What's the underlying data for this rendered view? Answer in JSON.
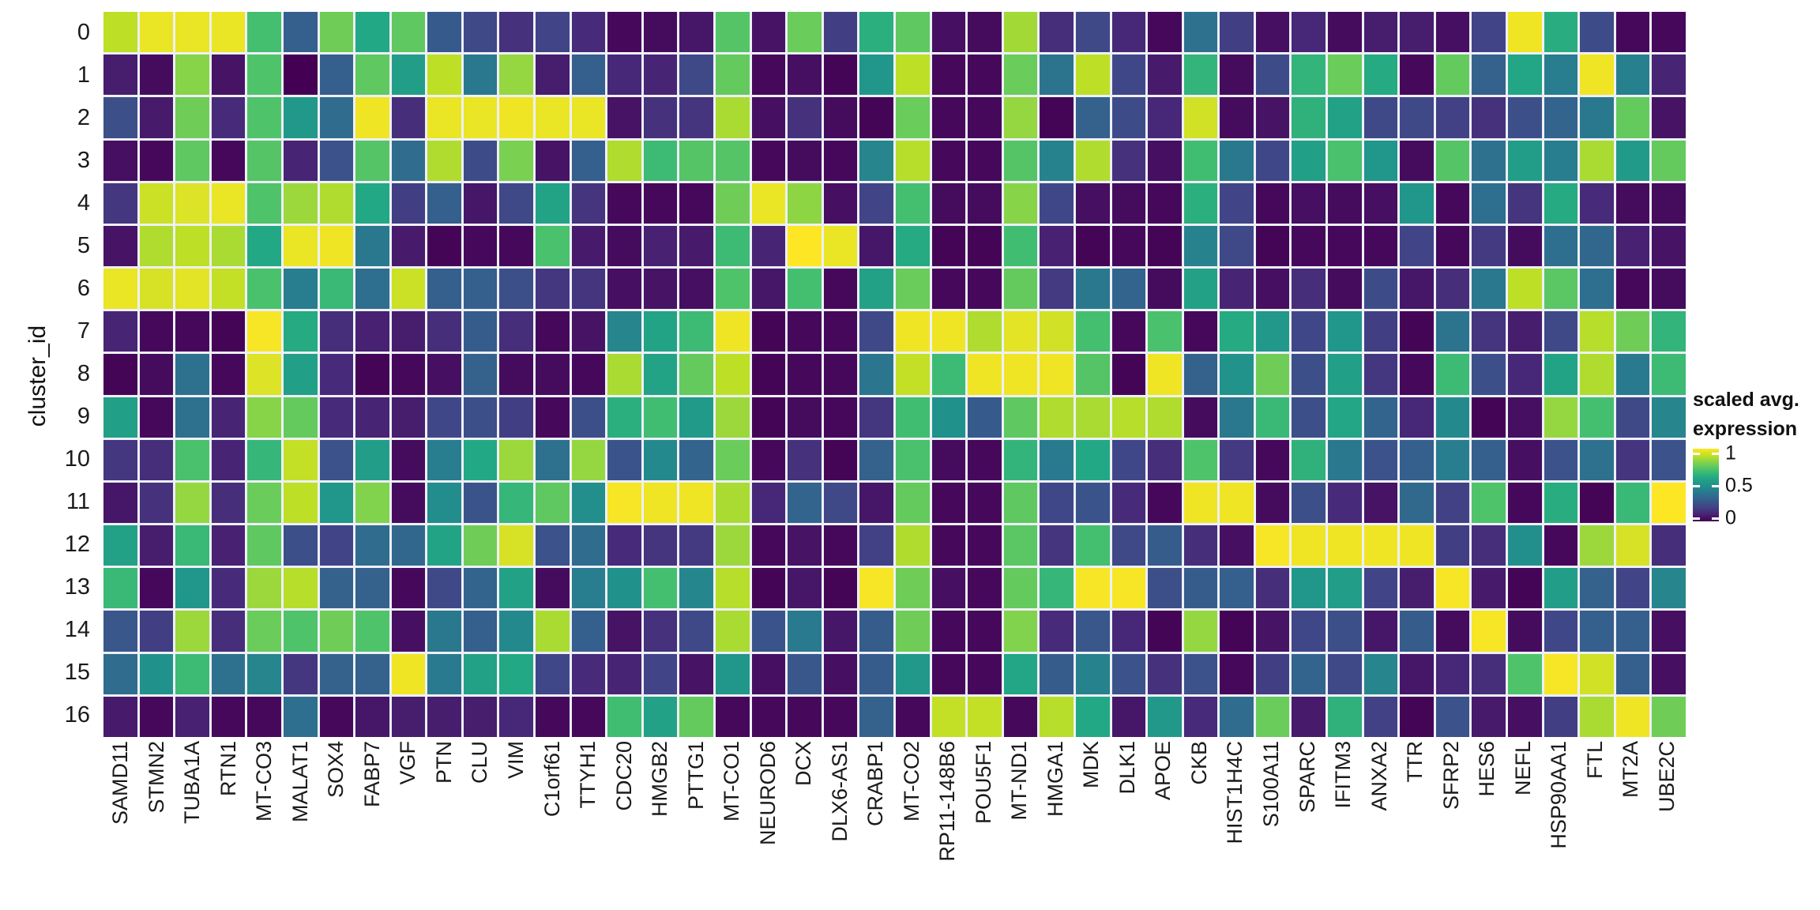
{
  "y_axis": {
    "title": "cluster_id",
    "labels": [
      "0",
      "1",
      "2",
      "3",
      "4",
      "5",
      "6",
      "7",
      "8",
      "9",
      "10",
      "11",
      "12",
      "13",
      "14",
      "15",
      "16"
    ]
  },
  "x_axis": {
    "labels": [
      "SAMD11",
      "STMN2",
      "TUBA1A",
      "RTN1",
      "MT-CO3",
      "MALAT1",
      "SOX4",
      "FABP7",
      "VGF",
      "PTN",
      "CLU",
      "VIM",
      "C1orf61",
      "TTYH1",
      "CDC20",
      "HMGB2",
      "PTTG1",
      "MT-CO1",
      "NEUROD6",
      "DCX",
      "DLX6-AS1",
      "CRABP1",
      "MT-CO2",
      "RP11-148B6",
      "POU5F1",
      "MT-ND1",
      "HMGA1",
      "MDK",
      "DLK1",
      "APOE",
      "CKB",
      "HIST1H4C",
      "S100A11",
      "SPARC",
      "IFITM3",
      "ANXA2",
      "TTR",
      "SFRP2",
      "HES6",
      "NEFL",
      "HSP90AA1",
      "FTL",
      "MT2A",
      "UBE2C"
    ]
  },
  "legend": {
    "title_line1": "scaled avg.",
    "title_line2": "expression",
    "ticks": [
      {
        "label": "1",
        "frac_from_top": 0.06
      },
      {
        "label": "0.5",
        "frac_from_top": 0.51
      },
      {
        "label": "0",
        "frac_from_top": 0.96
      }
    ]
  },
  "colors": {
    "viridis_stops": [
      "#440154",
      "#482475",
      "#414487",
      "#355f8d",
      "#2a788e",
      "#21918c",
      "#22a884",
      "#44bf70",
      "#7ad151",
      "#bddf26",
      "#fde725"
    ],
    "grid_line": "#eef0f7",
    "axis_text": "#1a1a1a"
  },
  "chart_data": {
    "type": "heatmap",
    "title": "",
    "xlabel": "",
    "ylabel": "cluster_id",
    "legend_title": "scaled avg. expression",
    "colormap": "viridis",
    "value_range": [
      0,
      1
    ],
    "grid": true,
    "legend_position": "right",
    "x": [
      "SAMD11",
      "STMN2",
      "TUBA1A",
      "RTN1",
      "MT-CO3",
      "MALAT1",
      "SOX4",
      "FABP7",
      "VGF",
      "PTN",
      "CLU",
      "VIM",
      "C1orf61",
      "TTYH1",
      "CDC20",
      "HMGB2",
      "PTTG1",
      "MT-CO1",
      "NEUROD6",
      "DCX",
      "DLX6-AS1",
      "CRABP1",
      "MT-CO2",
      "RP11-148B6",
      "POU5F1",
      "MT-ND1",
      "HMGA1",
      "MDK",
      "DLK1",
      "APOE",
      "CKB",
      "HIST1H4C",
      "S100A11",
      "SPARC",
      "IFITM3",
      "ANXA2",
      "TTR",
      "SFRP2",
      "HES6",
      "NEFL",
      "HSP90AA1",
      "FTL",
      "MT2A",
      "UBE2C"
    ],
    "y": [
      "0",
      "1",
      "2",
      "3",
      "4",
      "5",
      "6",
      "7",
      "8",
      "9",
      "10",
      "11",
      "12",
      "13",
      "14",
      "15",
      "16"
    ],
    "values": [
      [
        0.9,
        0.97,
        0.97,
        0.97,
        0.7,
        0.3,
        0.78,
        0.6,
        0.75,
        0.28,
        0.22,
        0.14,
        0.2,
        0.12,
        0.02,
        0.03,
        0.06,
        0.73,
        0.05,
        0.77,
        0.18,
        0.63,
        0.75,
        0.04,
        0.03,
        0.86,
        0.13,
        0.22,
        0.11,
        0.02,
        0.37,
        0.18,
        0.04,
        0.11,
        0.03,
        0.08,
        0.08,
        0.04,
        0.2,
        0.98,
        0.62,
        0.23,
        0.02,
        0.02
      ],
      [
        0.08,
        0.03,
        0.82,
        0.05,
        0.72,
        0.0,
        0.3,
        0.75,
        0.55,
        0.9,
        0.4,
        0.84,
        0.08,
        0.3,
        0.11,
        0.1,
        0.22,
        0.76,
        0.02,
        0.04,
        0.01,
        0.52,
        0.9,
        0.02,
        0.02,
        0.77,
        0.38,
        0.9,
        0.21,
        0.07,
        0.65,
        0.03,
        0.23,
        0.65,
        0.77,
        0.61,
        0.02,
        0.76,
        0.31,
        0.59,
        0.42,
        0.98,
        0.43,
        0.1
      ],
      [
        0.24,
        0.07,
        0.78,
        0.12,
        0.72,
        0.53,
        0.35,
        0.98,
        0.13,
        0.97,
        0.97,
        0.98,
        0.97,
        0.97,
        0.05,
        0.14,
        0.15,
        0.87,
        0.04,
        0.14,
        0.03,
        0.01,
        0.77,
        0.02,
        0.02,
        0.84,
        0.01,
        0.31,
        0.23,
        0.11,
        0.93,
        0.03,
        0.05,
        0.64,
        0.57,
        0.22,
        0.22,
        0.19,
        0.14,
        0.24,
        0.32,
        0.4,
        0.76,
        0.05
      ],
      [
        0.04,
        0.02,
        0.75,
        0.02,
        0.73,
        0.1,
        0.25,
        0.73,
        0.35,
        0.88,
        0.23,
        0.8,
        0.05,
        0.3,
        0.88,
        0.68,
        0.73,
        0.73,
        0.02,
        0.03,
        0.02,
        0.45,
        0.89,
        0.02,
        0.02,
        0.73,
        0.44,
        0.88,
        0.14,
        0.04,
        0.69,
        0.4,
        0.21,
        0.56,
        0.71,
        0.52,
        0.03,
        0.73,
        0.37,
        0.55,
        0.42,
        0.87,
        0.54,
        0.76
      ],
      [
        0.16,
        0.92,
        0.95,
        0.97,
        0.72,
        0.85,
        0.88,
        0.6,
        0.18,
        0.3,
        0.06,
        0.22,
        0.58,
        0.15,
        0.02,
        0.02,
        0.02,
        0.78,
        0.97,
        0.83,
        0.04,
        0.2,
        0.7,
        0.03,
        0.03,
        0.82,
        0.21,
        0.04,
        0.03,
        0.02,
        0.63,
        0.2,
        0.02,
        0.04,
        0.03,
        0.04,
        0.52,
        0.02,
        0.36,
        0.15,
        0.61,
        0.12,
        0.03,
        0.03
      ],
      [
        0.05,
        0.88,
        0.9,
        0.87,
        0.6,
        0.97,
        0.98,
        0.4,
        0.07,
        0.01,
        0.02,
        0.02,
        0.71,
        0.07,
        0.03,
        0.09,
        0.07,
        0.68,
        0.1,
        1.0,
        0.97,
        0.06,
        0.61,
        0.01,
        0.01,
        0.69,
        0.09,
        0.01,
        0.02,
        0.01,
        0.44,
        0.22,
        0.01,
        0.02,
        0.02,
        0.02,
        0.2,
        0.02,
        0.17,
        0.03,
        0.36,
        0.33,
        0.09,
        0.05
      ],
      [
        0.97,
        0.94,
        0.96,
        0.91,
        0.71,
        0.42,
        0.67,
        0.36,
        0.92,
        0.3,
        0.3,
        0.24,
        0.16,
        0.15,
        0.04,
        0.05,
        0.04,
        0.72,
        0.06,
        0.7,
        0.02,
        0.57,
        0.77,
        0.02,
        0.02,
        0.76,
        0.17,
        0.4,
        0.32,
        0.03,
        0.57,
        0.1,
        0.04,
        0.13,
        0.03,
        0.23,
        0.06,
        0.13,
        0.4,
        0.9,
        0.74,
        0.36,
        0.02,
        0.03
      ],
      [
        0.1,
        0.02,
        0.02,
        0.01,
        0.99,
        0.61,
        0.13,
        0.09,
        0.08,
        0.13,
        0.29,
        0.13,
        0.02,
        0.05,
        0.45,
        0.58,
        0.68,
        0.98,
        0.01,
        0.02,
        0.02,
        0.22,
        0.98,
        0.98,
        0.88,
        0.96,
        0.93,
        0.7,
        0.02,
        0.71,
        0.02,
        0.61,
        0.53,
        0.21,
        0.52,
        0.18,
        0.01,
        0.38,
        0.15,
        0.08,
        0.22,
        0.89,
        0.78,
        0.65
      ],
      [
        0.01,
        0.03,
        0.37,
        0.02,
        0.95,
        0.56,
        0.12,
        0.01,
        0.02,
        0.04,
        0.31,
        0.03,
        0.03,
        0.02,
        0.87,
        0.58,
        0.76,
        0.9,
        0.01,
        0.02,
        0.02,
        0.39,
        0.91,
        0.68,
        0.98,
        0.98,
        0.98,
        0.73,
        0.01,
        0.98,
        0.31,
        0.51,
        0.78,
        0.24,
        0.56,
        0.16,
        0.02,
        0.68,
        0.24,
        0.11,
        0.58,
        0.88,
        0.41,
        0.68
      ],
      [
        0.56,
        0.02,
        0.37,
        0.1,
        0.82,
        0.76,
        0.12,
        0.1,
        0.08,
        0.21,
        0.24,
        0.18,
        0.02,
        0.24,
        0.63,
        0.69,
        0.54,
        0.85,
        0.01,
        0.03,
        0.02,
        0.16,
        0.69,
        0.5,
        0.28,
        0.75,
        0.88,
        0.87,
        0.89,
        0.88,
        0.03,
        0.4,
        0.67,
        0.24,
        0.59,
        0.32,
        0.11,
        0.47,
        0.01,
        0.04,
        0.84,
        0.7,
        0.22,
        0.45
      ],
      [
        0.16,
        0.13,
        0.71,
        0.1,
        0.66,
        0.91,
        0.25,
        0.55,
        0.03,
        0.42,
        0.6,
        0.85,
        0.37,
        0.84,
        0.26,
        0.47,
        0.32,
        0.77,
        0.02,
        0.14,
        0.01,
        0.31,
        0.71,
        0.03,
        0.02,
        0.65,
        0.41,
        0.6,
        0.21,
        0.13,
        0.72,
        0.17,
        0.02,
        0.64,
        0.4,
        0.25,
        0.3,
        0.42,
        0.3,
        0.04,
        0.25,
        0.37,
        0.15,
        0.25
      ],
      [
        0.06,
        0.14,
        0.84,
        0.13,
        0.77,
        0.9,
        0.52,
        0.81,
        0.03,
        0.48,
        0.26,
        0.66,
        0.75,
        0.49,
        0.99,
        0.98,
        0.98,
        0.87,
        0.11,
        0.32,
        0.22,
        0.06,
        0.76,
        0.02,
        0.02,
        0.75,
        0.21,
        0.26,
        0.12,
        0.02,
        0.98,
        0.98,
        0.03,
        0.24,
        0.12,
        0.05,
        0.34,
        0.19,
        0.72,
        0.02,
        0.62,
        0.01,
        0.67,
        1.0
      ],
      [
        0.57,
        0.08,
        0.67,
        0.09,
        0.75,
        0.24,
        0.2,
        0.35,
        0.33,
        0.58,
        0.78,
        0.94,
        0.25,
        0.35,
        0.12,
        0.15,
        0.17,
        0.85,
        0.02,
        0.05,
        0.02,
        0.19,
        0.88,
        0.02,
        0.02,
        0.74,
        0.15,
        0.7,
        0.22,
        0.29,
        0.13,
        0.04,
        0.99,
        0.98,
        0.98,
        0.98,
        0.98,
        0.18,
        0.13,
        0.49,
        0.02,
        0.85,
        0.94,
        0.13
      ],
      [
        0.67,
        0.02,
        0.52,
        0.12,
        0.85,
        0.89,
        0.31,
        0.31,
        0.02,
        0.22,
        0.32,
        0.57,
        0.03,
        0.42,
        0.5,
        0.7,
        0.46,
        0.89,
        0.01,
        0.06,
        0.01,
        0.99,
        0.78,
        0.04,
        0.02,
        0.76,
        0.66,
        0.99,
        0.99,
        0.24,
        0.29,
        0.3,
        0.13,
        0.52,
        0.55,
        0.2,
        0.08,
        0.99,
        0.07,
        0.01,
        0.55,
        0.31,
        0.2,
        0.45
      ],
      [
        0.27,
        0.18,
        0.85,
        0.13,
        0.77,
        0.72,
        0.78,
        0.72,
        0.04,
        0.4,
        0.3,
        0.47,
        0.87,
        0.3,
        0.05,
        0.14,
        0.22,
        0.87,
        0.26,
        0.41,
        0.06,
        0.29,
        0.78,
        0.02,
        0.02,
        0.81,
        0.12,
        0.27,
        0.11,
        0.01,
        0.84,
        0.01,
        0.05,
        0.21,
        0.24,
        0.06,
        0.29,
        0.03,
        0.99,
        0.03,
        0.21,
        0.3,
        0.3,
        0.04
      ],
      [
        0.35,
        0.5,
        0.68,
        0.37,
        0.45,
        0.16,
        0.31,
        0.31,
        0.98,
        0.41,
        0.57,
        0.6,
        0.21,
        0.12,
        0.1,
        0.2,
        0.05,
        0.52,
        0.04,
        0.27,
        0.04,
        0.29,
        0.53,
        0.02,
        0.02,
        0.59,
        0.29,
        0.44,
        0.25,
        0.14,
        0.25,
        0.02,
        0.18,
        0.32,
        0.22,
        0.45,
        0.06,
        0.11,
        0.13,
        0.72,
        0.99,
        0.93,
        0.3,
        0.04
      ],
      [
        0.07,
        0.02,
        0.09,
        0.02,
        0.02,
        0.36,
        0.02,
        0.06,
        0.08,
        0.08,
        0.08,
        0.11,
        0.02,
        0.02,
        0.69,
        0.57,
        0.76,
        0.02,
        0.02,
        0.02,
        0.02,
        0.31,
        0.02,
        0.91,
        0.91,
        0.02,
        0.89,
        0.6,
        0.06,
        0.53,
        0.12,
        0.35,
        0.77,
        0.07,
        0.64,
        0.19,
        0.01,
        0.25,
        0.07,
        0.04,
        0.18,
        0.87,
        0.98,
        0.78
      ]
    ]
  }
}
